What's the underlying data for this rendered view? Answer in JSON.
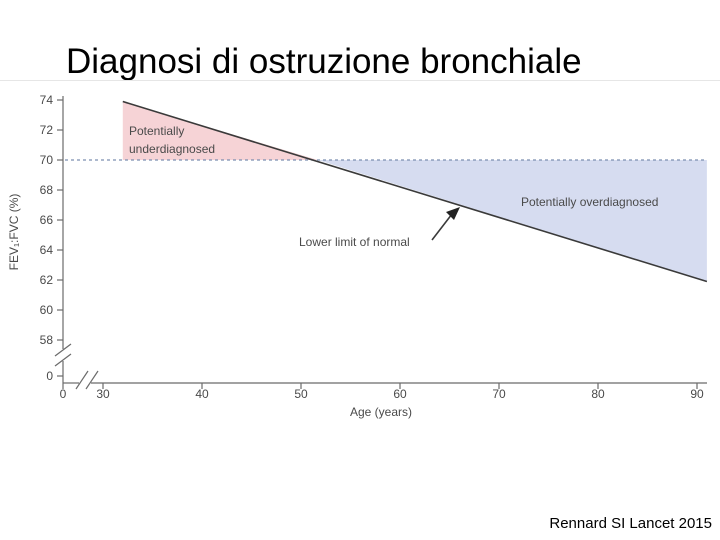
{
  "slide": {
    "title": "Diagnosi di ostruzione bronchiale",
    "citation": "Rennard SI Lancet 2015"
  },
  "colors": {
    "underdiagnosed_fill": "#f6d3d6",
    "overdiagnosed_fill": "#d6dcf0",
    "threshold_line": "#7c8fb0",
    "lln_line": "#3a3a3a",
    "axis": "#6b6b6b",
    "text": "#4a4a4a"
  },
  "chart_data": {
    "type": "line",
    "xlabel": "Age (years)",
    "ylabel": "FEV₁:FVC (%)",
    "x_ticks": [
      0,
      30,
      40,
      50,
      60,
      70,
      80,
      90
    ],
    "y_ticks": [
      0,
      58,
      60,
      62,
      64,
      66,
      68,
      70,
      72,
      74
    ],
    "axis_breaks": true,
    "grid": false,
    "series": [
      {
        "name": "Lower limit of normal",
        "x": [
          32,
          91
        ],
        "y": [
          73.9,
          61.9
        ]
      }
    ],
    "threshold": {
      "y": 70,
      "style": "dashed"
    },
    "regions": [
      {
        "label": "Potentially underdiagnosed",
        "x_from": 32,
        "x_to": 51.7,
        "between": "lln_above_threshold"
      },
      {
        "label": "Potentially overdiagnosed",
        "x_from": 51.7,
        "x_to": 91,
        "between": "threshold_above_lln"
      }
    ],
    "annotations": [
      {
        "text": "Lower limit of normal",
        "points_to_x": 66,
        "points_to_y": 66.9
      }
    ],
    "labels": {
      "under_line1": "Potentially",
      "under_line2": "underdiagnosed",
      "over": "Potentially overdiagnosed",
      "lln": "Lower limit of normal"
    }
  }
}
